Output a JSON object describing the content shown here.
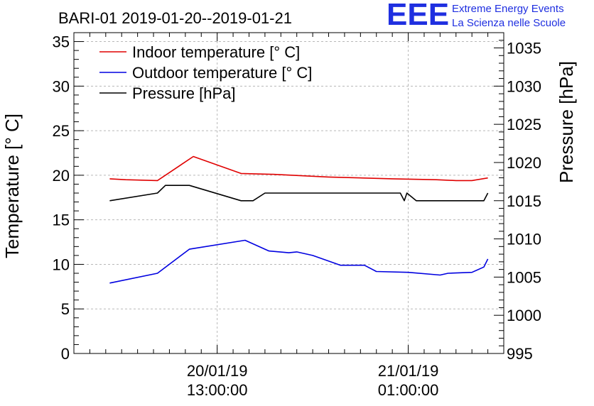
{
  "logo": {
    "mark": "EEE",
    "line1": "Extreme Energy Events",
    "line2": "La Scienza nelle Scuole",
    "color": "#1f2fe0"
  },
  "chart_data": {
    "type": "line",
    "title": "BARI-01 2019-01-20--2019-01-21",
    "ylabel": "Temperature [° C]",
    "y2label": "Pressure [hPa]",
    "ylim": [
      0,
      36
    ],
    "y2lim": [
      995,
      1037
    ],
    "yticks": [
      "0",
      "5",
      "10",
      "15",
      "20",
      "25",
      "30",
      "35"
    ],
    "y2ticks": [
      "995",
      "1000",
      "1005",
      "1010",
      "1015",
      "1020",
      "1025",
      "1030",
      "1035"
    ],
    "xlim": [
      "2019-01-20 04:00",
      "2019-01-21 07:00"
    ],
    "xticks": [
      {
        "x": "2019-01-20 13:00",
        "line1": "20/01/19",
        "line2": "13:00:00"
      },
      {
        "x": "2019-01-21 01:00",
        "line1": "21/01/19",
        "line2": "01:00:00"
      }
    ],
    "grid": true,
    "legend_position": "top-left",
    "series": [
      {
        "name": "Indoor temperature [° C]",
        "axis": "left",
        "color": "#e00000",
        "points": [
          [
            "2019-01-20 06:15",
            19.6
          ],
          [
            "2019-01-20 07:15",
            19.5
          ],
          [
            "2019-01-20 09:15",
            19.4
          ],
          [
            "2019-01-20 11:30",
            22.1
          ],
          [
            "2019-01-20 14:30",
            20.2
          ],
          [
            "2019-01-20 16:30",
            20.1
          ],
          [
            "2019-01-20 20:00",
            19.8
          ],
          [
            "2019-01-21 00:00",
            19.6
          ],
          [
            "2019-01-21 02:45",
            19.5
          ],
          [
            "2019-01-21 04:00",
            19.4
          ],
          [
            "2019-01-21 05:00",
            19.4
          ],
          [
            "2019-01-21 06:00",
            19.7
          ]
        ]
      },
      {
        "name": "Outdoor temperature [° C]",
        "axis": "left",
        "color": "#0000e0",
        "points": [
          [
            "2019-01-20 06:15",
            7.9
          ],
          [
            "2019-01-20 09:15",
            9.0
          ],
          [
            "2019-01-20 11:15",
            11.7
          ],
          [
            "2019-01-20 14:45",
            12.7
          ],
          [
            "2019-01-20 16:15",
            11.5
          ],
          [
            "2019-01-20 17:30",
            11.3
          ],
          [
            "2019-01-20 18:00",
            11.4
          ],
          [
            "2019-01-20 19:00",
            11.0
          ],
          [
            "2019-01-20 20:45",
            9.9
          ],
          [
            "2019-01-20 22:15",
            9.9
          ],
          [
            "2019-01-20 23:00",
            9.2
          ],
          [
            "2019-01-21 01:00",
            9.1
          ],
          [
            "2019-01-21 03:00",
            8.8
          ],
          [
            "2019-01-21 03:30",
            9.0
          ],
          [
            "2019-01-21 05:00",
            9.1
          ],
          [
            "2019-01-21 05:45",
            9.7
          ],
          [
            "2019-01-21 06:00",
            10.6
          ]
        ]
      },
      {
        "name": "Pressure [hPa]",
        "axis": "right",
        "color": "#000000",
        "points": [
          [
            "2019-01-20 06:15",
            1015.0
          ],
          [
            "2019-01-20 09:15",
            1016.0
          ],
          [
            "2019-01-20 09:45",
            1017.0
          ],
          [
            "2019-01-20 11:15",
            1017.0
          ],
          [
            "2019-01-20 14:30",
            1015.0
          ],
          [
            "2019-01-20 15:15",
            1015.0
          ],
          [
            "2019-01-20 16:00",
            1016.0
          ],
          [
            "2019-01-21 00:30",
            1016.0
          ],
          [
            "2019-01-21 00:45",
            1015.0
          ],
          [
            "2019-01-21 00:55",
            1016.0
          ],
          [
            "2019-01-21 01:30",
            1015.0
          ],
          [
            "2019-01-21 05:45",
            1015.0
          ],
          [
            "2019-01-21 06:00",
            1016.0
          ]
        ]
      }
    ]
  }
}
